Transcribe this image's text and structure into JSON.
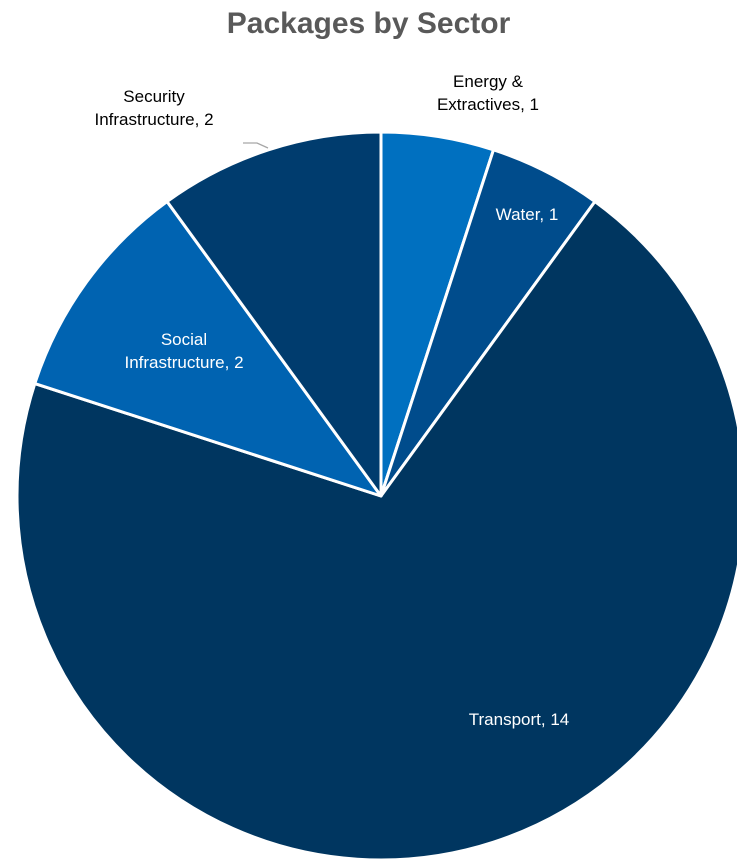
{
  "chart_data": {
    "type": "pie",
    "title": "Packages by Sector",
    "slices": [
      {
        "label": "Energy &\nExtractives, 1",
        "name": "Energy & Extractives",
        "value": 1,
        "color": "#0070C0",
        "label_color": "#000000"
      },
      {
        "label": "Water, 1",
        "name": "Water",
        "value": 1,
        "color": "#004C8C",
        "label_color": "#ffffff"
      },
      {
        "label": "Transport, 14",
        "name": "Transport",
        "value": 14,
        "color": "#003660",
        "label_color": "#ffffff"
      },
      {
        "label": "Social\nInfrastructure, 2",
        "name": "Social Infrastructure",
        "value": 2,
        "color": "#0063B1",
        "label_color": "#ffffff"
      },
      {
        "label": "Security\nInfrastructure, 2",
        "name": "Security Infrastructure",
        "value": 2,
        "color": "#003C6E",
        "label_color": "#000000"
      }
    ]
  }
}
